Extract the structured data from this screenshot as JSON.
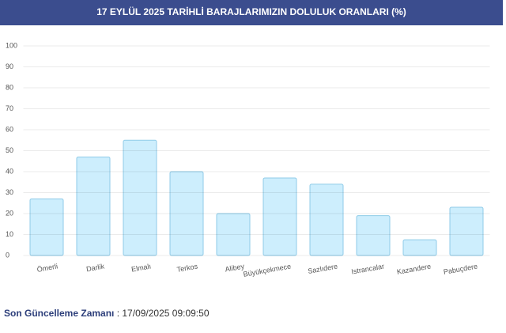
{
  "chart_data": {
    "type": "bar",
    "title": "17 EYLÜL 2025 TARİHLİ BARAJLARIMIZIN DOLULUK ORANLARI (%)",
    "categories": [
      "Ömerli",
      "Darlik",
      "Elmalı",
      "Terkos",
      "Alibey",
      "Büyükçekmece",
      "Sazlıdere",
      "Istrancalar",
      "Kazandere",
      "Pabuçdere"
    ],
    "values": [
      27,
      47,
      55,
      40,
      20,
      37,
      34,
      19,
      7.5,
      23
    ],
    "color": "#cdeefd",
    "edge_color": "#8fcbe8",
    "ylim": [
      0,
      100
    ],
    "yticks": [
      0,
      10,
      20,
      30,
      40,
      50,
      60,
      70,
      80,
      90,
      100
    ],
    "grid": true
  },
  "footer": {
    "label": "Son Güncelleme Zamanı",
    "value": ": 17/09/2025 09:09:50"
  }
}
